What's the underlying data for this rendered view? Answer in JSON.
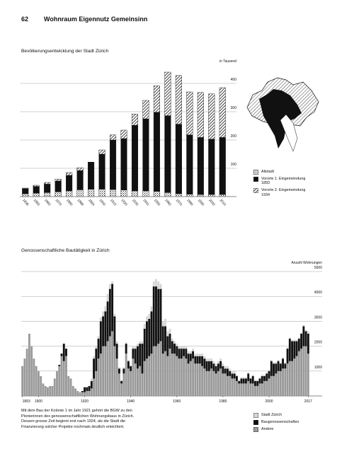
{
  "page_header": {
    "page_number": "62",
    "title": "Wohnraum Eigennutz Gemeinsinn"
  },
  "chart_data": [
    {
      "type": "bar",
      "stacked": true,
      "title": "Bevölkerungsentwicklung der Stadt Zürich",
      "y_label": "in Tausend",
      "categories": [
        "1836",
        "1850",
        "1860",
        "1870",
        "1880",
        "1888",
        "1894",
        "1900",
        "1910",
        "1920",
        "1930",
        "1941",
        "1950",
        "1960",
        "1970",
        "1980",
        "1990",
        "2000",
        "2010"
      ],
      "series": [
        {
          "name": "Altstadt",
          "color": "#111111",
          "pattern": "dots",
          "values": [
            10,
            12,
            14,
            17,
            20,
            24,
            26,
            26,
            25,
            23,
            20,
            20,
            18,
            14,
            10,
            8,
            7,
            7,
            7
          ]
        },
        {
          "name": "Vororte 1. Eingemeindung 1893",
          "color": "#111111",
          "pattern": "solid",
          "values": [
            18,
            24,
            30,
            38,
            55,
            68,
            96,
            124,
            175,
            182,
            232,
            255,
            280,
            272,
            246,
            210,
            202,
            196,
            202
          ]
        },
        {
          "name": "Vororte 2. Eingemeindung 1934",
          "color": "#111111",
          "pattern": "hatch",
          "values": [
            2,
            4,
            6,
            7,
            10,
            10,
            0,
            15,
            18,
            30,
            40,
            65,
            94,
            154,
            172,
            152,
            159,
            160,
            176
          ]
        }
      ],
      "ylim": [
        0,
        450
      ],
      "yticks": [
        100,
        200,
        300,
        400
      ],
      "grid": true
    },
    {
      "type": "bar",
      "stacked": true,
      "title": "Genossenschaftliche Bautätigkeit in Zürich",
      "y_label": "Anzahl Wohnungen",
      "x": [
        1893,
        1894,
        1895,
        1896,
        1897,
        1898,
        1899,
        1900,
        1901,
        1902,
        1903,
        1904,
        1905,
        1906,
        1907,
        1908,
        1909,
        1910,
        1911,
        1912,
        1913,
        1914,
        1915,
        1916,
        1917,
        1918,
        1919,
        1920,
        1921,
        1922,
        1923,
        1924,
        1925,
        1926,
        1927,
        1928,
        1929,
        1930,
        1931,
        1932,
        1933,
        1934,
        1935,
        1936,
        1937,
        1938,
        1939,
        1940,
        1941,
        1942,
        1943,
        1944,
        1945,
        1946,
        1947,
        1948,
        1949,
        1950,
        1951,
        1952,
        1953,
        1954,
        1955,
        1956,
        1957,
        1958,
        1959,
        1960,
        1961,
        1962,
        1963,
        1964,
        1965,
        1966,
        1967,
        1968,
        1969,
        1970,
        1971,
        1972,
        1973,
        1974,
        1975,
        1976,
        1977,
        1978,
        1979,
        1980,
        1981,
        1982,
        1983,
        1984,
        1985,
        1986,
        1987,
        1988,
        1989,
        1990,
        1991,
        1992,
        1993,
        1994,
        1995,
        1996,
        1997,
        1998,
        1999,
        2000,
        2001,
        2002,
        2003,
        2004,
        2005,
        2006,
        2007,
        2008,
        2009,
        2010,
        2011,
        2012,
        2013,
        2014,
        2015,
        2016,
        2017
      ],
      "series": [
        {
          "name": "Stadt Zürich",
          "color": "#d6d6d6",
          "values": [
            0,
            0,
            0,
            0,
            0,
            0,
            0,
            0,
            0,
            0,
            0,
            0,
            0,
            0,
            0,
            0,
            0,
            0,
            0,
            0,
            0,
            0,
            0,
            0,
            0,
            0,
            0,
            0,
            0,
            0,
            100,
            100,
            100,
            100,
            150,
            200,
            200,
            300,
            200,
            100,
            100,
            100,
            50,
            50,
            50,
            50,
            50,
            0,
            100,
            100,
            100,
            100,
            100,
            200,
            200,
            200,
            200,
            200,
            300,
            300,
            200,
            200,
            300,
            200,
            200,
            100,
            100,
            100,
            100,
            100,
            100,
            100,
            100,
            100,
            100,
            100,
            100,
            100,
            100,
            100,
            100,
            100,
            100,
            100,
            100,
            100,
            100,
            100,
            100,
            100,
            100,
            100,
            100,
            50,
            50,
            50,
            50,
            50,
            50,
            50,
            50,
            50,
            50,
            50,
            50,
            50,
            50,
            50,
            50,
            50,
            50,
            50,
            50,
            50,
            50,
            50,
            50,
            50,
            50,
            50,
            50,
            50,
            50,
            50,
            100
          ]
        },
        {
          "name": "Baugenossenschaften",
          "color": "#111111",
          "values": [
            0,
            0,
            0,
            0,
            0,
            0,
            0,
            0,
            0,
            0,
            0,
            0,
            0,
            0,
            0,
            0,
            50,
            100,
            700,
            300,
            0,
            0,
            0,
            0,
            0,
            0,
            50,
            200,
            150,
            200,
            300,
            800,
            900,
            800,
            1300,
            1200,
            1400,
            1600,
            1900,
            1900,
            1200,
            600,
            200,
            100,
            200,
            400,
            300,
            200,
            400,
            600,
            900,
            900,
            1200,
            1300,
            1500,
            1500,
            1700,
            2400,
            2400,
            2200,
            2100,
            1100,
            1000,
            800,
            600,
            500,
            400,
            400,
            400,
            400,
            300,
            400,
            400,
            300,
            300,
            300,
            300,
            300,
            400,
            400,
            400,
            400,
            300,
            300,
            300,
            300,
            300,
            300,
            200,
            300,
            200,
            200,
            200,
            200,
            100,
            200,
            200,
            200,
            300,
            200,
            300,
            200,
            200,
            200,
            300,
            200,
            300,
            300,
            600,
            500,
            400,
            400,
            300,
            400,
            200,
            600,
            900,
            800,
            700,
            600,
            500,
            600,
            800,
            600,
            800
          ]
        },
        {
          "name": "Andere",
          "color": "#9a9a9a",
          "values": [
            1200,
            1500,
            1900,
            2500,
            2000,
            1500,
            1200,
            1000,
            800,
            500,
            400,
            350,
            400,
            400,
            700,
            1000,
            1200,
            1600,
            1400,
            1600,
            800,
            700,
            400,
            300,
            200,
            150,
            150,
            150,
            200,
            200,
            300,
            700,
            1000,
            1500,
            1700,
            2000,
            2000,
            2200,
            2400,
            2600,
            2000,
            1500,
            900,
            500,
            900,
            1700,
            1100,
            1000,
            1500,
            1300,
            1100,
            1200,
            900,
            1400,
            1500,
            1600,
            1700,
            2000,
            2000,
            2100,
            2200,
            1700,
            1800,
            1600,
            1900,
            1700,
            1700,
            1600,
            1500,
            1500,
            1600,
            1500,
            1300,
            1400,
            1500,
            1300,
            1300,
            1300,
            1200,
            1100,
            1000,
            1000,
            1100,
            1000,
            900,
            1000,
            1100,
            900,
            900,
            800,
            800,
            700,
            700,
            600,
            500,
            500,
            500,
            500,
            600,
            500,
            500,
            400,
            400,
            500,
            500,
            600,
            600,
            700,
            800,
            800,
            900,
            1000,
            1000,
            1100,
            1100,
            1300,
            1400,
            1400,
            1500,
            1600,
            1800,
            1900,
            2000,
            2000,
            1700
          ]
        }
      ],
      "xlim": [
        1892.5,
        2017.5
      ],
      "xticks": [
        1893,
        1900,
        1920,
        1940,
        1960,
        1980,
        2000,
        2017
      ],
      "ylim": [
        0,
        5000
      ],
      "yticks": [
        1000,
        2000,
        3000,
        4000,
        5000
      ],
      "grid": true
    }
  ],
  "caption": "Mit dem Bau der Kolonie 1 im Jahr 1921 gehört die BGW zu den Pionierinnen des genossenschaftlichen Wohnungsbaus in Zürich. Dessen grosse Zeit beginnt erst nach 1924, als die Stadt die Finanzierung solcher Projekte nochmals deutlich erleichtert."
}
